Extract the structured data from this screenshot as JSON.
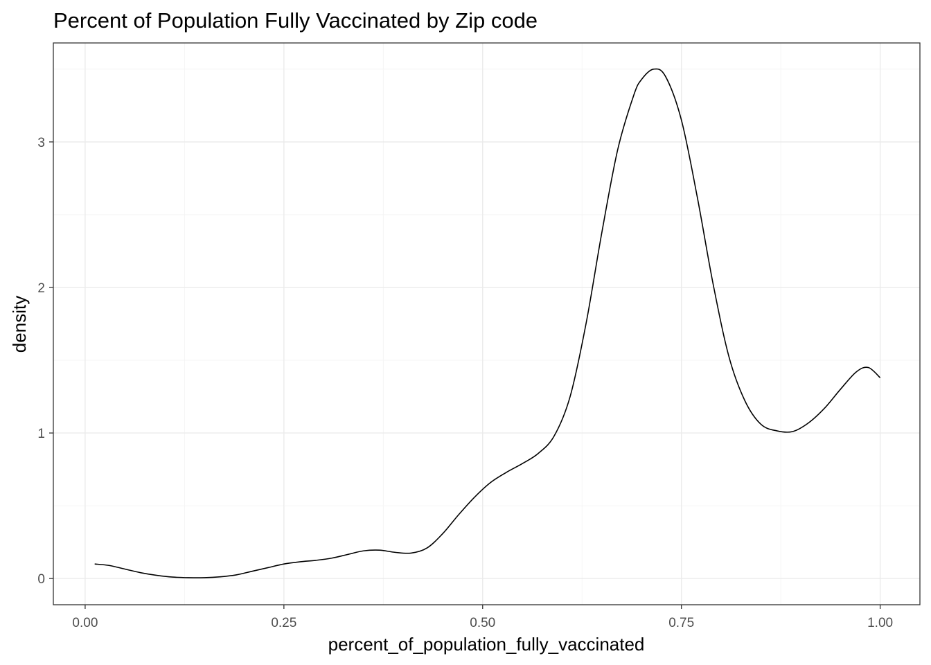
{
  "chart_data": {
    "type": "line",
    "title": "Percent of Population Fully Vaccinated by Zip code",
    "xlabel": "percent_of_population_fully_vaccinated",
    "ylabel": "density",
    "xlim": [
      -0.04,
      1.05
    ],
    "ylim": [
      -0.18,
      3.68
    ],
    "x_ticks": [
      0.0,
      0.25,
      0.5,
      0.75,
      1.0
    ],
    "x_tick_labels": [
      "0.00",
      "0.25",
      "0.50",
      "0.75",
      "1.00"
    ],
    "y_ticks": [
      0,
      1,
      2,
      3
    ],
    "y_tick_labels": [
      "0",
      "1",
      "2",
      "3"
    ],
    "grid": true,
    "line_color": "#000000",
    "series": [
      {
        "x": [
          0.012,
          0.03,
          0.05,
          0.07,
          0.09,
          0.11,
          0.13,
          0.15,
          0.17,
          0.19,
          0.21,
          0.23,
          0.25,
          0.27,
          0.29,
          0.31,
          0.33,
          0.35,
          0.37,
          0.39,
          0.41,
          0.43,
          0.45,
          0.47,
          0.49,
          0.51,
          0.53,
          0.55,
          0.57,
          0.59,
          0.61,
          0.63,
          0.65,
          0.67,
          0.69,
          0.7,
          0.715,
          0.73,
          0.75,
          0.77,
          0.79,
          0.81,
          0.83,
          0.85,
          0.87,
          0.89,
          0.91,
          0.93,
          0.95,
          0.97,
          0.985,
          1.0
        ],
        "y": [
          0.1,
          0.09,
          0.065,
          0.04,
          0.022,
          0.01,
          0.006,
          0.006,
          0.012,
          0.025,
          0.05,
          0.075,
          0.1,
          0.115,
          0.125,
          0.14,
          0.165,
          0.19,
          0.195,
          0.18,
          0.175,
          0.21,
          0.31,
          0.44,
          0.56,
          0.66,
          0.73,
          0.79,
          0.86,
          0.98,
          1.25,
          1.75,
          2.38,
          2.95,
          3.32,
          3.43,
          3.5,
          3.45,
          3.15,
          2.62,
          2.02,
          1.52,
          1.22,
          1.06,
          1.015,
          1.01,
          1.07,
          1.17,
          1.3,
          1.42,
          1.45,
          1.38
        ]
      }
    ]
  }
}
